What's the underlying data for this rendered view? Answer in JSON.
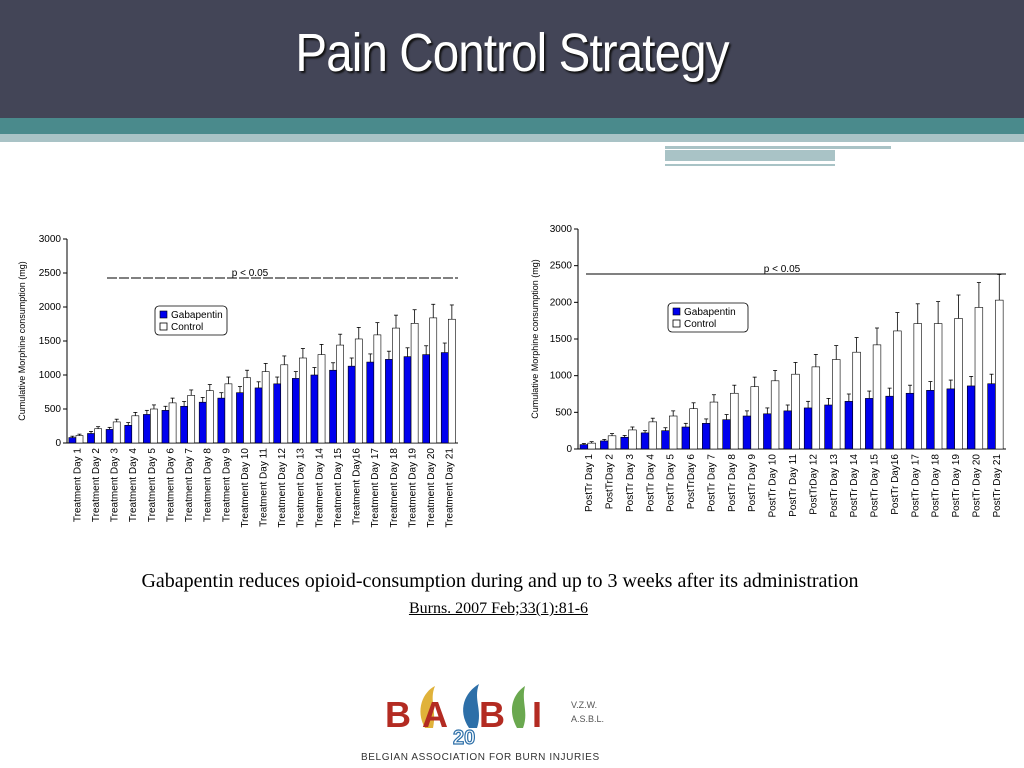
{
  "slide": {
    "title": "Pain Control Strategy",
    "caption": "Gabapentin reduces opioid-consumption during and up to 3 weeks after its administration",
    "reference": "Burns. 2007 Feb;33(1):81-6"
  },
  "logo": {
    "letters": [
      "B",
      "A",
      "B",
      "I"
    ],
    "number": "20",
    "suffix_1": "V.Z.W.",
    "suffix_2": "A.S.B.L.",
    "tagline": "Belgian Association for Burn Injuries"
  },
  "colors": {
    "gabapentin": "#0000ee",
    "control": "#ffffff",
    "header": "#434557",
    "teal": "#4a8a8c"
  },
  "chart_data": [
    {
      "type": "bar",
      "ylabel": "Cumulative Morphine consumption (mg)",
      "ylim": [
        0,
        3000
      ],
      "yticks": [
        "0",
        "500",
        "1000",
        "1500",
        "2000",
        "2500",
        "3000"
      ],
      "annotation": "p < 0.05",
      "legend_placement": "top-left",
      "grid": false,
      "categories": [
        "Treatment Day 1",
        "Treatment Day 2",
        "Treatment Day 3",
        "Treatment Day 4",
        "Treatment Day 5",
        "Treatment Day 6",
        "Treatment Day 7",
        "Treatment Day 8",
        "Treatment Day 9",
        "Treatment Day 10",
        "Treatment Day 11",
        "Treatment Day 12",
        "Treatment Day 13",
        "Treatment Day 14",
        "Treatment Day 15",
        "Treatment Day16",
        "Treatment Day 17",
        "Treatment Day 18",
        "Treatment Day 19",
        "Treatment Day 20",
        "Treatment Day 21"
      ],
      "series": [
        {
          "name": "Gabapentin",
          "values": [
            80,
            140,
            200,
            260,
            420,
            480,
            540,
            600,
            660,
            740,
            810,
            870,
            950,
            1000,
            1070,
            1130,
            1190,
            1230,
            1270,
            1300,
            1330
          ],
          "errors": [
            20,
            30,
            30,
            40,
            60,
            60,
            70,
            70,
            80,
            90,
            90,
            100,
            100,
            110,
            110,
            120,
            120,
            120,
            130,
            130,
            140
          ]
        },
        {
          "name": "Control",
          "values": [
            110,
            210,
            310,
            400,
            500,
            590,
            700,
            770,
            870,
            960,
            1050,
            1150,
            1250,
            1300,
            1440,
            1530,
            1590,
            1690,
            1760,
            1840,
            1820
          ],
          "errors": [
            20,
            30,
            40,
            50,
            60,
            70,
            80,
            90,
            100,
            110,
            120,
            130,
            140,
            150,
            160,
            170,
            180,
            190,
            200,
            200,
            210
          ]
        }
      ]
    },
    {
      "type": "bar",
      "ylabel": "Cumulative Morphine consumption (mg)",
      "ylim": [
        0,
        3000
      ],
      "yticks": [
        "0",
        "500",
        "1000",
        "1500",
        "2000",
        "2500",
        "3000"
      ],
      "annotation": "p < 0.05",
      "legend_placement": "top-left",
      "grid": false,
      "categories": [
        "PostTr Day 1",
        "PostTrDay 2",
        "PostTr Day 3",
        "PostTr Day 4",
        "PostTr Day 5",
        "PostTrDay 6",
        "PostTr Day 7",
        "PostTr Day 8",
        "PostTr Day 9",
        "PostTr Day 10",
        "PostTr Day 11",
        "PostTrDay 12",
        "PostTr Day 13",
        "PostTr Day 14",
        "PostTr Day 15",
        "PostTr Day16",
        "PostTr Day 17",
        "PostTr Day 18",
        "PostTr Day 19",
        "PostTr Day 20",
        "PostTr Day 21"
      ],
      "series": [
        {
          "name": "Gabapentin",
          "values": [
            60,
            110,
            160,
            220,
            250,
            300,
            350,
            400,
            450,
            480,
            520,
            560,
            600,
            650,
            690,
            720,
            760,
            800,
            820,
            860,
            890
          ],
          "errors": [
            15,
            20,
            25,
            30,
            40,
            50,
            60,
            70,
            70,
            80,
            80,
            90,
            90,
            100,
            100,
            110,
            110,
            120,
            120,
            130,
            130
          ]
        },
        {
          "name": "Control",
          "values": [
            80,
            180,
            260,
            370,
            450,
            550,
            640,
            760,
            850,
            930,
            1020,
            1120,
            1220,
            1320,
            1420,
            1610,
            1710,
            1710,
            1780,
            1930,
            2030
          ],
          "errors": [
            20,
            30,
            40,
            50,
            70,
            80,
            100,
            110,
            130,
            140,
            160,
            170,
            190,
            200,
            230,
            250,
            270,
            300,
            320,
            340,
            350
          ]
        }
      ]
    }
  ]
}
